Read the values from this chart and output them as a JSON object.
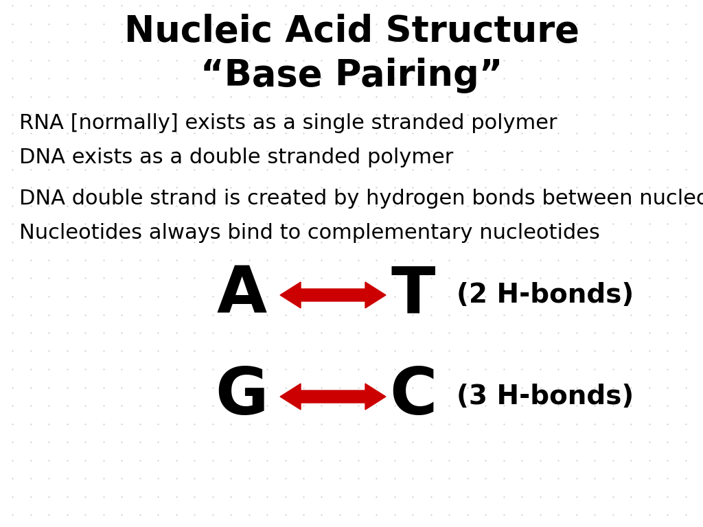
{
  "title_line1": "Nucleic Acid Structure",
  "title_line2": "“Base Pairing”",
  "bullet1": "RNA [normally] exists as a single stranded polymer",
  "bullet2": "DNA exists as a double stranded polymer",
  "bullet3": "DNA double strand is created by hydrogen bonds between nucleotides",
  "bullet4": "Nucleotides always bind to complementary nucleotides",
  "pair1_left": "A",
  "pair1_right": "T",
  "pair1_label": "(2 H-bonds)",
  "pair2_left": "G",
  "pair2_right": "C",
  "pair2_label": "(3 H-bonds)",
  "bg_color": "#ffffff",
  "text_color": "#000000",
  "arrow_color": "#cc0000",
  "dot_color": "#c8c8c8",
  "title_fontsize": 38,
  "subtitle_fontsize": 38,
  "bullet_fontsize": 22,
  "pair_letter_fontsize": 68,
  "pair_label_fontsize": 28
}
